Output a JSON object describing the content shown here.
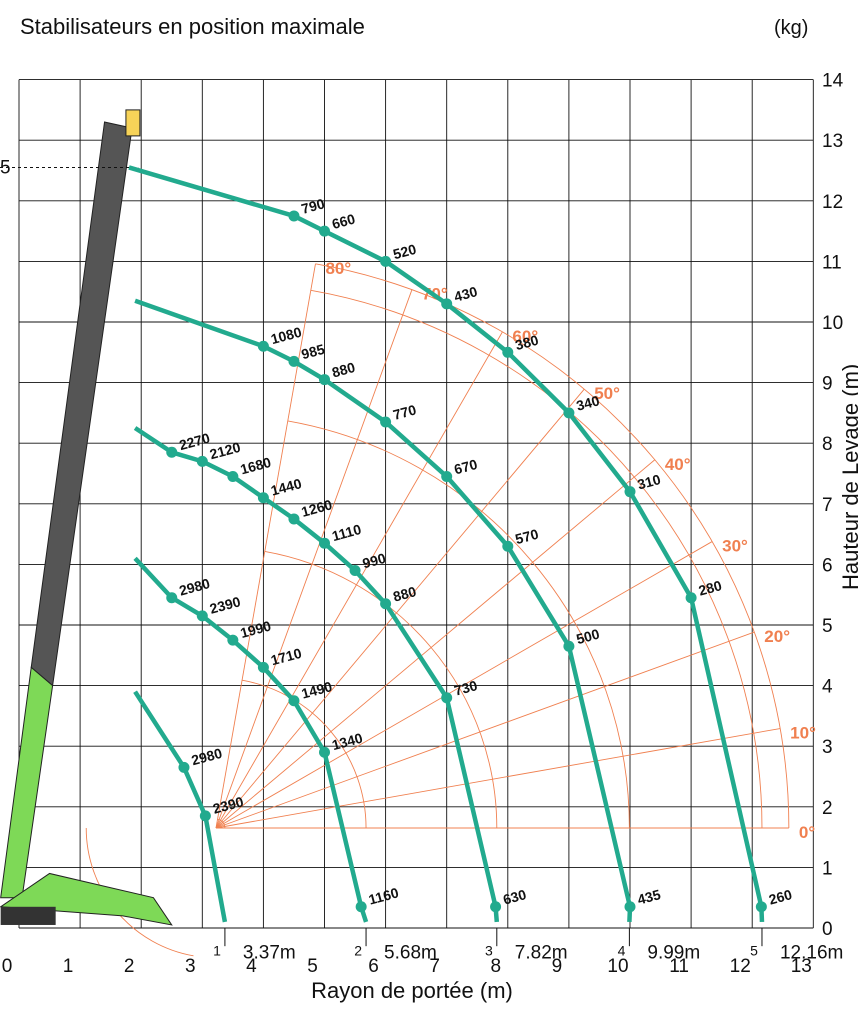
{
  "chart_data": {
    "type": "line",
    "title": "Stabilisateurs en position maximale",
    "xlabel": "Rayon de portée (m)",
    "ylabel": "Hauteur de Levage (m)",
    "unit_label": "(kg)",
    "xlim": [
      0,
      13
    ],
    "ylim": [
      0,
      14
    ],
    "x_ticks": [
      "0",
      "1",
      "2",
      "3",
      "4",
      "5",
      "6",
      "7",
      "8",
      "9",
      "10",
      "11",
      "12",
      "13"
    ],
    "y_ticks": [
      "0",
      "1",
      "2",
      "3",
      "4",
      "5",
      "6",
      "7",
      "8",
      "9",
      "10",
      "11",
      "12",
      "13",
      "14"
    ],
    "left_marker": "5",
    "angle_labels": [
      "0°",
      "10°",
      "20°",
      "30°",
      "40°",
      "50°",
      "60°",
      "70°",
      "80°"
    ],
    "angles": [
      0,
      10,
      20,
      30,
      40,
      50,
      60,
      70,
      80
    ],
    "colors": {
      "curve": "#22aa8e",
      "grid_angle": "#f08050",
      "grid": "#111111",
      "boom": "#555555",
      "crane_green": "#7ed957"
    },
    "series": [
      {
        "boom": "1",
        "radius_label": "3.37m",
        "max_height": 3.9,
        "points": [
          {
            "x": 2.7,
            "y": 2.65,
            "label": "2980"
          },
          {
            "x": 3.05,
            "y": 1.85,
            "label": "2390"
          }
        ]
      },
      {
        "boom": "2",
        "radius_label": "5.68m",
        "max_height": 6.1,
        "points": [
          {
            "x": 2.5,
            "y": 5.45,
            "label": "2980"
          },
          {
            "x": 3.0,
            "y": 5.15,
            "label": "2390"
          },
          {
            "x": 3.5,
            "y": 4.75,
            "label": "1990"
          },
          {
            "x": 4.0,
            "y": 4.3,
            "label": "1710"
          },
          {
            "x": 4.5,
            "y": 3.75,
            "label": "1490"
          },
          {
            "x": 5.0,
            "y": 2.9,
            "label": "1340"
          },
          {
            "x": 5.6,
            "y": 0.35,
            "label": "1160"
          }
        ]
      },
      {
        "boom": "3",
        "radius_label": "7.82m",
        "max_height": 8.25,
        "points": [
          {
            "x": 2.5,
            "y": 7.85,
            "label": "2270"
          },
          {
            "x": 3.0,
            "y": 7.7,
            "label": "2120"
          },
          {
            "x": 3.5,
            "y": 7.45,
            "label": "1680"
          },
          {
            "x": 4.0,
            "y": 7.1,
            "label": "1440"
          },
          {
            "x": 4.5,
            "y": 6.75,
            "label": "1260"
          },
          {
            "x": 5.0,
            "y": 6.35,
            "label": "1110"
          },
          {
            "x": 5.5,
            "y": 5.9,
            "label": "990"
          },
          {
            "x": 6.0,
            "y": 5.35,
            "label": "880"
          },
          {
            "x": 7.0,
            "y": 3.8,
            "label": "730"
          },
          {
            "x": 7.8,
            "y": 0.35,
            "label": "630"
          }
        ]
      },
      {
        "boom": "4",
        "radius_label": "9.99m",
        "max_height": 10.35,
        "points": [
          {
            "x": 4.0,
            "y": 9.6,
            "label": "1080"
          },
          {
            "x": 4.5,
            "y": 9.35,
            "label": "985"
          },
          {
            "x": 5.0,
            "y": 9.05,
            "label": "880"
          },
          {
            "x": 6.0,
            "y": 8.35,
            "label": "770"
          },
          {
            "x": 7.0,
            "y": 7.45,
            "label": "670"
          },
          {
            "x": 8.0,
            "y": 6.3,
            "label": "570"
          },
          {
            "x": 9.0,
            "y": 4.65,
            "label": "500"
          },
          {
            "x": 10.0,
            "y": 0.35,
            "label": "435"
          }
        ]
      },
      {
        "boom": "5",
        "radius_label": "12.16m",
        "max_height": 12.55,
        "points": [
          {
            "x": 4.5,
            "y": 11.75,
            "label": "790"
          },
          {
            "x": 5.0,
            "y": 11.5,
            "label": "660"
          },
          {
            "x": 6.0,
            "y": 11.0,
            "label": "520"
          },
          {
            "x": 7.0,
            "y": 10.3,
            "label": "430"
          },
          {
            "x": 8.0,
            "y": 9.5,
            "label": "380"
          },
          {
            "x": 9.0,
            "y": 8.5,
            "label": "340"
          },
          {
            "x": 10.0,
            "y": 7.2,
            "label": "310"
          },
          {
            "x": 11.0,
            "y": 5.45,
            "label": "280"
          },
          {
            "x": 12.15,
            "y": 0.35,
            "label": "260"
          }
        ]
      }
    ]
  }
}
